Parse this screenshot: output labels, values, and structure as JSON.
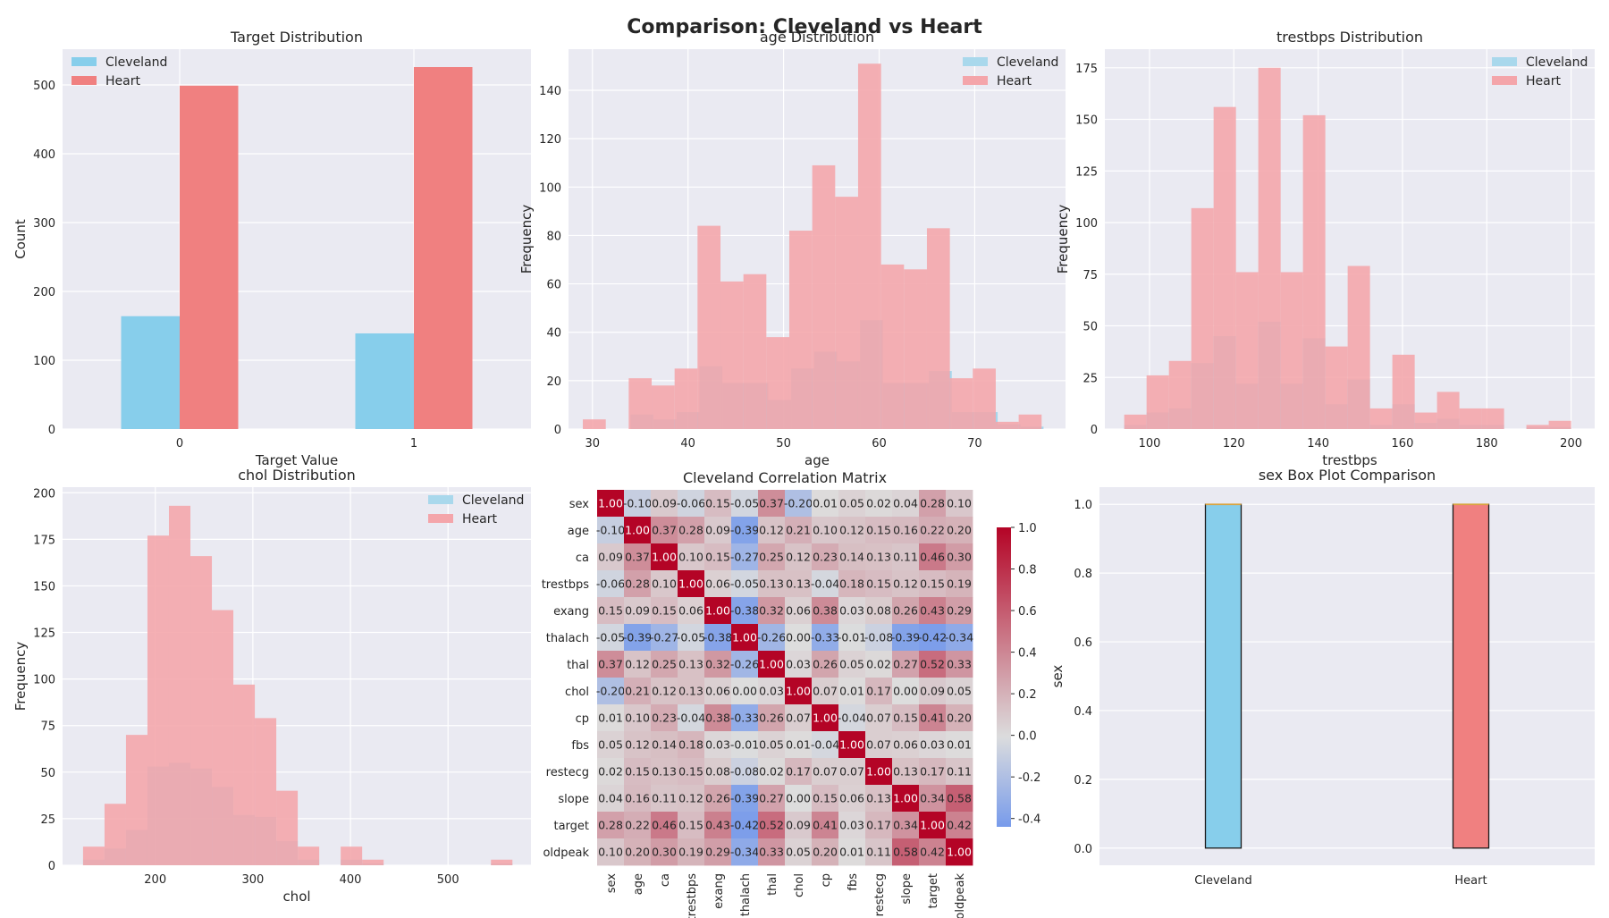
{
  "suptitle": "Comparison: Cleveland vs Heart",
  "colors": {
    "cleveland": "#87ceeb",
    "heart": "#f08080",
    "heart_hist": "#f4a5aa",
    "cleveland_hist": "#a9d8ec",
    "plot_bg": "#eaeaf2",
    "grid": "#ffffff"
  },
  "chart_data": [
    {
      "id": "target",
      "type": "bar",
      "title": "Target Distribution",
      "xlabel": "Target Value",
      "ylabel": "Count",
      "categories": [
        "0",
        "1"
      ],
      "series": [
        {
          "name": "Cleveland",
          "values": [
            164,
            139
          ]
        },
        {
          "name": "Heart",
          "values": [
            499,
            526
          ]
        }
      ],
      "ylim": [
        0,
        552
      ],
      "yticks": [
        0,
        100,
        200,
        300,
        400,
        500
      ],
      "legend": "top-left",
      "grid": true
    },
    {
      "id": "age",
      "type": "histogram",
      "title": "age Distribution",
      "xlabel": "age",
      "ylabel": "Frequency",
      "xlim": [
        27.5,
        79.5
      ],
      "ylim": [
        0,
        157
      ],
      "xticks": [
        30,
        40,
        50,
        60,
        70
      ],
      "yticks": [
        0,
        20,
        40,
        60,
        80,
        100,
        120,
        140
      ],
      "legend": "top-right",
      "grid": true,
      "series": [
        {
          "name": "Cleveland",
          "edges": [
            34,
            36.4,
            38.8,
            41.2,
            43.6,
            46,
            48.4,
            50.8,
            53.2,
            55.6,
            58,
            60.4,
            62.8,
            65.2,
            67.6,
            70,
            72.4,
            74.8,
            77.2
          ],
          "counts": [
            6,
            4,
            7,
            26,
            19,
            19,
            12,
            25,
            32,
            28,
            45,
            19,
            19,
            24,
            7,
            7,
            2,
            1
          ]
        },
        {
          "name": "Heart",
          "edges": [
            29,
            31.4,
            33.8,
            36.2,
            38.6,
            41,
            43.4,
            45.8,
            48.2,
            50.6,
            53,
            55.4,
            57.8,
            60.2,
            62.6,
            65,
            67.4,
            69.8,
            72.2,
            74.6,
            77
          ],
          "counts": [
            4,
            0,
            21,
            18,
            25,
            84,
            61,
            64,
            38,
            82,
            109,
            96,
            151,
            68,
            66,
            83,
            21,
            25,
            3,
            6
          ]
        }
      ]
    },
    {
      "id": "trestbps",
      "type": "histogram",
      "title": "trestbps Distribution",
      "xlabel": "trestbps",
      "ylabel": "Frequency",
      "xlim": [
        89.4,
        205.6
      ],
      "ylim": [
        0,
        184
      ],
      "xticks": [
        100,
        120,
        140,
        160,
        180,
        200
      ],
      "yticks": [
        0,
        25,
        50,
        75,
        100,
        125,
        150,
        175
      ],
      "legend": "top-right",
      "grid": true,
      "series": [
        {
          "name": "Cleveland",
          "edges": [
            94,
            99.3,
            104.6,
            109.9,
            115.2,
            120.5,
            125.8,
            131.1,
            136.4,
            141.7,
            147,
            152.3,
            157.6,
            162.9,
            168.2,
            173.5,
            178.8,
            184.1,
            189.4,
            194.7,
            200
          ],
          "counts": [
            2,
            8,
            10,
            32,
            45,
            22,
            52,
            22,
            44,
            12,
            24,
            2,
            12,
            3,
            5,
            2,
            2,
            0,
            1,
            1
          ]
        },
        {
          "name": "Heart",
          "edges": [
            94,
            99.3,
            104.6,
            109.9,
            115.2,
            120.5,
            125.8,
            131.1,
            136.4,
            141.7,
            147,
            152.3,
            157.6,
            162.9,
            168.2,
            173.5,
            178.8,
            184.1,
            189.4,
            194.7,
            200
          ],
          "counts": [
            7,
            26,
            33,
            107,
            156,
            76,
            175,
            76,
            152,
            40,
            79,
            10,
            36,
            8,
            18,
            10,
            10,
            0,
            2,
            4
          ]
        }
      ]
    },
    {
      "id": "chol",
      "type": "histogram",
      "title": "chol Distribution",
      "xlabel": "chol",
      "ylabel": "Frequency",
      "xlim": [
        105,
        585
      ],
      "ylim": [
        0,
        203
      ],
      "xticks": [
        200,
        300,
        400,
        500
      ],
      "yticks": [
        0,
        25,
        50,
        75,
        100,
        125,
        150,
        175,
        200
      ],
      "legend": "top-right",
      "grid": true,
      "series": [
        {
          "name": "Cleveland",
          "edges": [
            126,
            148,
            170,
            192,
            214,
            236,
            258,
            280,
            302,
            324,
            346,
            368,
            390,
            412,
            434,
            456,
            478,
            500,
            522,
            544,
            566
          ],
          "counts": [
            3,
            9,
            19,
            53,
            55,
            52,
            42,
            27,
            26,
            13,
            3,
            0,
            3,
            1,
            0,
            0,
            0,
            0,
            0,
            1
          ]
        },
        {
          "name": "Heart",
          "edges": [
            126,
            148,
            170,
            192,
            214,
            236,
            258,
            280,
            302,
            324,
            346,
            368,
            390,
            412,
            434,
            456,
            478,
            500,
            522,
            544,
            566
          ],
          "counts": [
            10,
            33,
            70,
            177,
            193,
            166,
            137,
            97,
            79,
            40,
            10,
            0,
            10,
            3,
            0,
            0,
            0,
            0,
            0,
            3
          ]
        }
      ]
    },
    {
      "id": "corr",
      "type": "heatmap",
      "title": "Cleveland Correlation Matrix",
      "labels": [
        "sex",
        "age",
        "ca",
        "trestbps",
        "exang",
        "thalach",
        "thal",
        "chol",
        "cp",
        "fbs",
        "restecg",
        "slope",
        "target",
        "oldpeak"
      ],
      "colorbar": {
        "min": -0.44,
        "max": 1.0,
        "ticks": [
          1.0,
          0.8,
          0.6,
          0.4,
          0.2,
          0.0,
          -0.2,
          -0.4
        ]
      },
      "matrix": [
        [
          1.0,
          -0.1,
          0.09,
          -0.06,
          0.15,
          -0.05,
          0.37,
          -0.2,
          0.01,
          0.05,
          0.02,
          0.04,
          0.28,
          0.1
        ],
        [
          -0.1,
          1.0,
          0.37,
          0.28,
          0.09,
          -0.39,
          0.12,
          0.21,
          0.1,
          0.12,
          0.15,
          0.16,
          0.22,
          0.2
        ],
        [
          0.09,
          0.37,
          1.0,
          0.1,
          0.15,
          -0.27,
          0.25,
          0.12,
          0.23,
          0.14,
          0.13,
          0.11,
          0.46,
          0.3
        ],
        [
          -0.06,
          0.28,
          0.1,
          1.0,
          0.06,
          -0.05,
          0.13,
          0.13,
          -0.04,
          0.18,
          0.15,
          0.12,
          0.15,
          0.19
        ],
        [
          0.15,
          0.09,
          0.15,
          0.06,
          1.0,
          -0.38,
          0.32,
          0.06,
          0.38,
          0.03,
          0.08,
          0.26,
          0.43,
          0.29
        ],
        [
          -0.05,
          -0.39,
          -0.27,
          -0.05,
          -0.38,
          1.0,
          -0.26,
          -0.0,
          -0.33,
          -0.01,
          -0.08,
          -0.39,
          -0.42,
          -0.34
        ],
        [
          0.37,
          0.12,
          0.25,
          0.13,
          0.32,
          -0.26,
          1.0,
          0.03,
          0.26,
          0.05,
          0.02,
          0.27,
          0.52,
          0.33
        ],
        [
          -0.2,
          0.21,
          0.12,
          0.13,
          0.06,
          -0.0,
          0.03,
          1.0,
          0.07,
          0.01,
          0.17,
          -0.0,
          0.09,
          0.05
        ],
        [
          0.01,
          0.1,
          0.23,
          -0.04,
          0.38,
          -0.33,
          0.26,
          0.07,
          1.0,
          -0.04,
          0.07,
          0.15,
          0.41,
          0.2
        ],
        [
          0.05,
          0.12,
          0.14,
          0.18,
          0.03,
          -0.01,
          0.05,
          0.01,
          -0.04,
          1.0,
          0.07,
          0.06,
          0.03,
          0.01
        ],
        [
          0.02,
          0.15,
          0.13,
          0.15,
          0.08,
          -0.08,
          0.02,
          0.17,
          0.07,
          0.07,
          1.0,
          0.13,
          0.17,
          0.11
        ],
        [
          0.04,
          0.16,
          0.11,
          0.12,
          0.26,
          -0.39,
          0.27,
          -0.0,
          0.15,
          0.06,
          0.13,
          1.0,
          0.34,
          0.58
        ],
        [
          0.28,
          0.22,
          0.46,
          0.15,
          0.43,
          -0.42,
          0.52,
          0.09,
          0.41,
          0.03,
          0.17,
          0.34,
          1.0,
          0.42
        ],
        [
          0.1,
          0.2,
          0.3,
          0.19,
          0.29,
          -0.34,
          0.33,
          0.05,
          0.2,
          0.01,
          0.11,
          0.58,
          0.42,
          1.0
        ]
      ]
    },
    {
      "id": "sexbox",
      "type": "box",
      "title": "sex Box Plot Comparison",
      "ylabel": "sex",
      "categories": [
        "Cleveland",
        "Heart"
      ],
      "boxes": [
        {
          "name": "Cleveland",
          "q1": 0.0,
          "median": 1.0,
          "q3": 1.0,
          "whisker_low": 0.0,
          "whisker_high": 1.0
        },
        {
          "name": "Heart",
          "q1": 0.0,
          "median": 1.0,
          "q3": 1.0,
          "whisker_low": 0.0,
          "whisker_high": 1.0
        }
      ],
      "ylim": [
        -0.05,
        1.05
      ],
      "yticks": [
        "0.0",
        "0.2",
        "0.4",
        "0.6",
        "0.8",
        "1.0"
      ],
      "grid": true
    }
  ]
}
